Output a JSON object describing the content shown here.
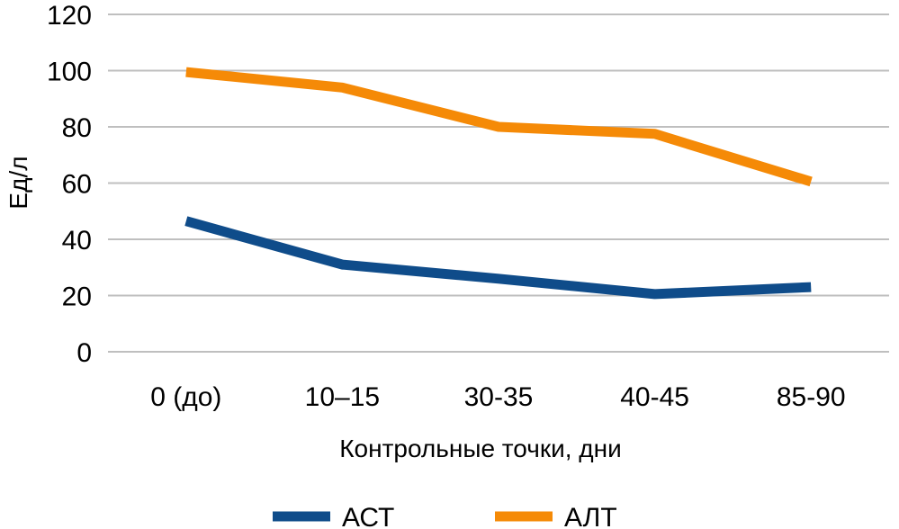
{
  "chart_data": {
    "type": "line",
    "title": "",
    "xlabel": "Контрольные точки, дни",
    "ylabel": "Ед/л",
    "categories": [
      "0 (до)",
      "10–15",
      "30-35",
      "40-45",
      "85-90"
    ],
    "ylim": [
      0,
      120
    ],
    "yticks": [
      0,
      20,
      40,
      60,
      80,
      100,
      120
    ],
    "grid": true,
    "legend_position": "bottom",
    "series": [
      {
        "name": "АСТ",
        "color": "#0F4C8A",
        "values": [
          46.5,
          31,
          26,
          20.5,
          23
        ]
      },
      {
        "name": "АЛТ",
        "color": "#F58A07",
        "values": [
          99.5,
          94,
          80,
          77.5,
          60.5
        ]
      }
    ],
    "grid_color": "#BFBFBF"
  }
}
